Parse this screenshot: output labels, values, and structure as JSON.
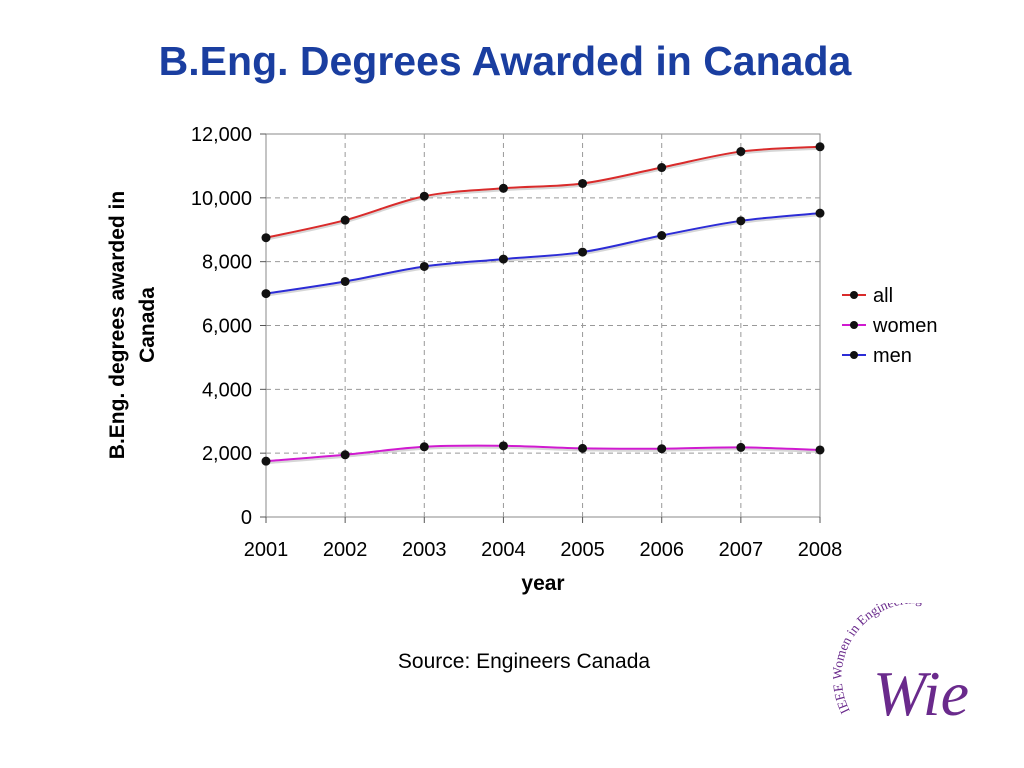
{
  "slide": {
    "title": "B.Eng. Degrees Awarded in Canada",
    "source": "Source: Engineers Canada"
  },
  "logo": {
    "text_arc": "IEEE Women in Engineering",
    "monogram": "Wie",
    "color": "#6a2a8c"
  },
  "chart_data": {
    "type": "line",
    "title": "",
    "xlabel": "year",
    "ylabel_line1": "B.Eng. degrees awarded in",
    "ylabel_line2": "Canada",
    "x": [
      2001,
      2002,
      2003,
      2004,
      2005,
      2006,
      2007,
      2008
    ],
    "ylim": [
      0,
      12000
    ],
    "yticks": [
      0,
      2000,
      4000,
      6000,
      8000,
      10000,
      12000
    ],
    "ytick_labels": [
      "0",
      "2,000",
      "4,000",
      "6,000",
      "8,000",
      "10,000",
      "12,000"
    ],
    "grid": true,
    "legend_position": "right",
    "series": [
      {
        "name": "all",
        "color": "#d92b2b",
        "values": [
          8750,
          9300,
          10050,
          10300,
          10450,
          10950,
          11450,
          11600
        ]
      },
      {
        "name": "women",
        "color": "#d01ad0",
        "values": [
          1750,
          1950,
          2200,
          2230,
          2150,
          2140,
          2180,
          2100
        ]
      },
      {
        "name": "men",
        "color": "#2c2cd6",
        "values": [
          7000,
          7380,
          7850,
          8080,
          8300,
          8820,
          9280,
          9520
        ]
      }
    ]
  }
}
